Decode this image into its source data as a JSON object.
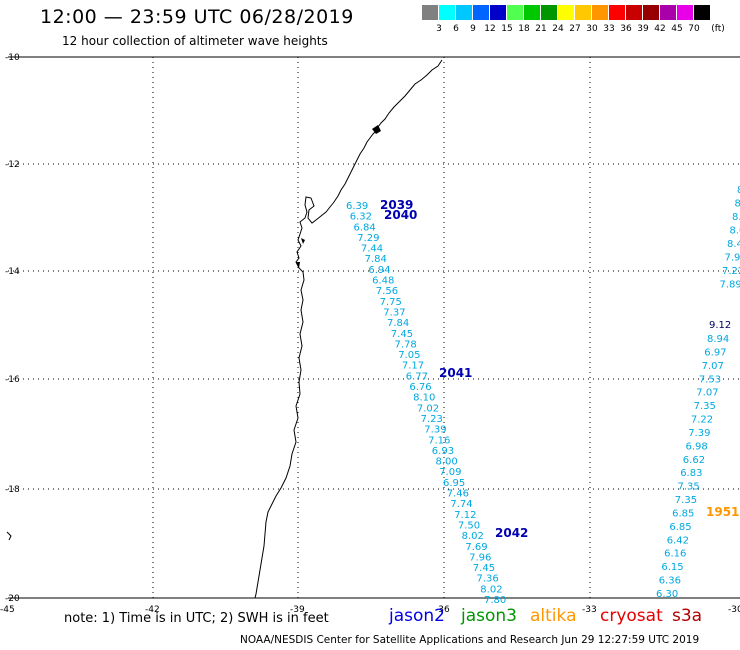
{
  "header": {
    "title": "12:00 — 23:59 UTC 06/28/2019",
    "subtitle": "12 hour collection of altimeter wave heights"
  },
  "colorbar": {
    "swatches": [
      {
        "color": "#808080",
        "label": ""
      },
      {
        "color": "#00ffff",
        "label": "3"
      },
      {
        "color": "#00c8ff",
        "label": "6"
      },
      {
        "color": "#0064ff",
        "label": "9"
      },
      {
        "color": "#0000c8",
        "label": "12"
      },
      {
        "color": "#50ff50",
        "label": "15"
      },
      {
        "color": "#00c800",
        "label": "18"
      },
      {
        "color": "#009600",
        "label": "21"
      },
      {
        "color": "#ffff00",
        "label": "24"
      },
      {
        "color": "#ffc800",
        "label": "27"
      },
      {
        "color": "#ff9600",
        "label": "30"
      },
      {
        "color": "#ff0000",
        "label": "33"
      },
      {
        "color": "#c80000",
        "label": "36"
      },
      {
        "color": "#960000",
        "label": "39"
      },
      {
        "color": "#aa00aa",
        "label": "42"
      },
      {
        "color": "#e800e8",
        "label": "45"
      },
      {
        "color": "#000000",
        "label": "70"
      }
    ],
    "unit": "(ft)"
  },
  "axes": {
    "lat_labels": [
      "-10",
      "-12",
      "-14",
      "-16",
      "-18",
      "-20"
    ],
    "lon_labels": [
      "-45",
      "-42",
      "-39",
      "-36",
      "-33",
      "-30"
    ]
  },
  "colors": {
    "cyan": "#00a8e0",
    "navy": "#0000b0",
    "orange": "#ff9600"
  },
  "tracks": {
    "left_track": [
      "6.39",
      "6.32",
      "6.84",
      "7.29",
      "7.44",
      "7.84",
      "6.94",
      "6.48",
      "7.56",
      "7.75",
      "7.37",
      "7.84",
      "7.45",
      "7.78",
      "7.05",
      "7.17",
      "6.77",
      "6.76",
      "8.10",
      "7.02",
      "7.23",
      "7.39",
      "7.16",
      "6.93",
      "8.00",
      "7.09",
      "6.95",
      "7.46",
      "7.74",
      "7.12",
      "7.50",
      "8.02",
      "7.69",
      "7.96",
      "7.45",
      "7.36",
      "8.02",
      "7.80"
    ],
    "right_track_top": [
      "8.",
      "8.",
      "8.3",
      "8.0",
      "8.4",
      "7.93",
      "7.22",
      "7.89"
    ],
    "right_track_mid": "9.12",
    "right_track_rest": [
      "8.94",
      "6.97",
      "7.07",
      "7.53",
      "7.07",
      "7.35",
      "7.22",
      "7.39",
      "6.98",
      "6.62",
      "6.83",
      "7.35",
      "7.35",
      "6.85",
      "6.85",
      "6.42",
      "6.16",
      "6.15",
      "6.36",
      "6.30"
    ]
  },
  "pass_labels": [
    {
      "text": "2039",
      "color": "navy"
    },
    {
      "text": "2040",
      "color": "navy"
    },
    {
      "text": "2041",
      "color": "navy"
    },
    {
      "text": "2042",
      "color": "navy"
    },
    {
      "text": "1951",
      "color": "orange"
    }
  ],
  "note": "note: 1) Time is in UTC; 2) SWH is in feet",
  "satellites": [
    {
      "name": "jason2",
      "color": "#0000e6"
    },
    {
      "name": "jason3",
      "color": "#009600"
    },
    {
      "name": "altika",
      "color": "#ff9600"
    },
    {
      "name": "cryosat",
      "color": "#e60000"
    },
    {
      "name": "s3a",
      "color": "#b00000"
    }
  ],
  "footer": "NOAA/NESDIS Center for Satellite Applications and Research    Jun 29 12:27:59 UTC 2019"
}
